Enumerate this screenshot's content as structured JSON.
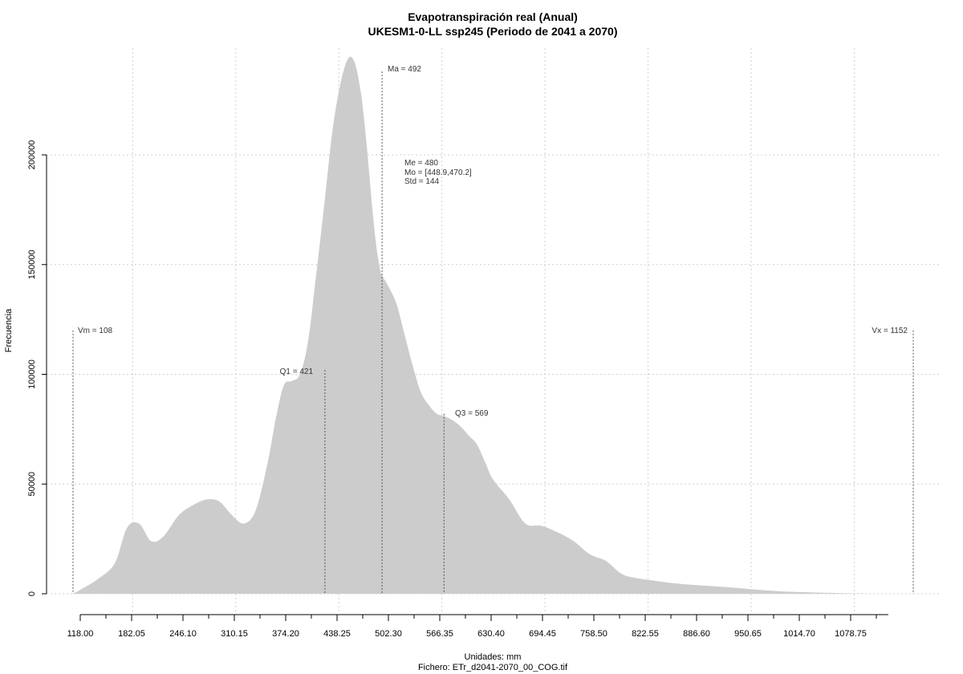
{
  "chart_data": {
    "type": "area",
    "title": "Evapotranspiración real (Anual)",
    "subtitle": "UKESM1-0-LL ssp245 (Periodo de 2041 a 2070)",
    "xlabel": "Unidades: mm",
    "caption": "Fichero: ETr_d2041-2070_00_COG.tif",
    "ylabel": "Frecuencia",
    "xlim": [
      108,
      1152
    ],
    "ylim": [
      0,
      245000
    ],
    "x_ticks": [
      "118.00",
      "182.05",
      "246.10",
      "310.15",
      "374.20",
      "438.25",
      "502.30",
      "566.35",
      "630.40",
      "694.45",
      "758.50",
      "822.55",
      "886.60",
      "950.65",
      "1014.70",
      "1078.75"
    ],
    "y_ticks": [
      0,
      50000,
      100000,
      150000,
      200000
    ],
    "y_tick_labels": [
      "0",
      "50000",
      "100000",
      "150000",
      "200000"
    ],
    "grid": true,
    "fill_color": "#cccccc",
    "series": [
      {
        "x": [
          108,
          118,
          140,
          160,
          175,
          190,
          205,
          220,
          240,
          260,
          275,
          290,
          305,
          320,
          335,
          350,
          360,
          370,
          380,
          390,
          400,
          410,
          421,
          430,
          440,
          450,
          458,
          465,
          470,
          475,
          480,
          485,
          490,
          492,
          500,
          510,
          520,
          530,
          540,
          550,
          560,
          569,
          580,
          590,
          600,
          610,
          620,
          630,
          650,
          670,
          690,
          710,
          730,
          750,
          770,
          790,
          810,
          830,
          850,
          880,
          920,
          960,
          1000,
          1050,
          1100,
          1152
        ],
        "y": [
          0,
          2000,
          7000,
          14000,
          30000,
          32000,
          24000,
          26000,
          36000,
          41000,
          43000,
          42000,
          36000,
          32000,
          38000,
          60000,
          80000,
          95000,
          97000,
          100000,
          115000,
          145000,
          180000,
          210000,
          232000,
          244000,
          242000,
          230000,
          215000,
          196000,
          175000,
          158000,
          147000,
          145000,
          140000,
          132000,
          118000,
          104000,
          92000,
          86000,
          82000,
          81000,
          79000,
          76000,
          72000,
          68000,
          60000,
          52000,
          43000,
          32000,
          31000,
          28000,
          24000,
          18000,
          15000,
          9000,
          7000,
          6000,
          5000,
          4000,
          3000,
          1800,
          900,
          400,
          0,
          0
        ]
      }
    ],
    "annotations": {
      "min": "Vm = 108",
      "max": "Vx = 1152",
      "q1": "Q1 = 421",
      "q3": "Q3 = 569",
      "mean": "Ma = 492",
      "stats": [
        "Me = 480",
        "Mo = [448.9,470.2]",
        "Std = 144"
      ]
    },
    "markers": {
      "min": {
        "x": 108,
        "y": 120000
      },
      "max": {
        "x": 1152,
        "y": 120000
      },
      "q1": {
        "x": 421,
        "y": 102000
      },
      "q3": {
        "x": 569,
        "y": 82000
      },
      "mean": {
        "x": 492,
        "y": 238000
      }
    }
  }
}
